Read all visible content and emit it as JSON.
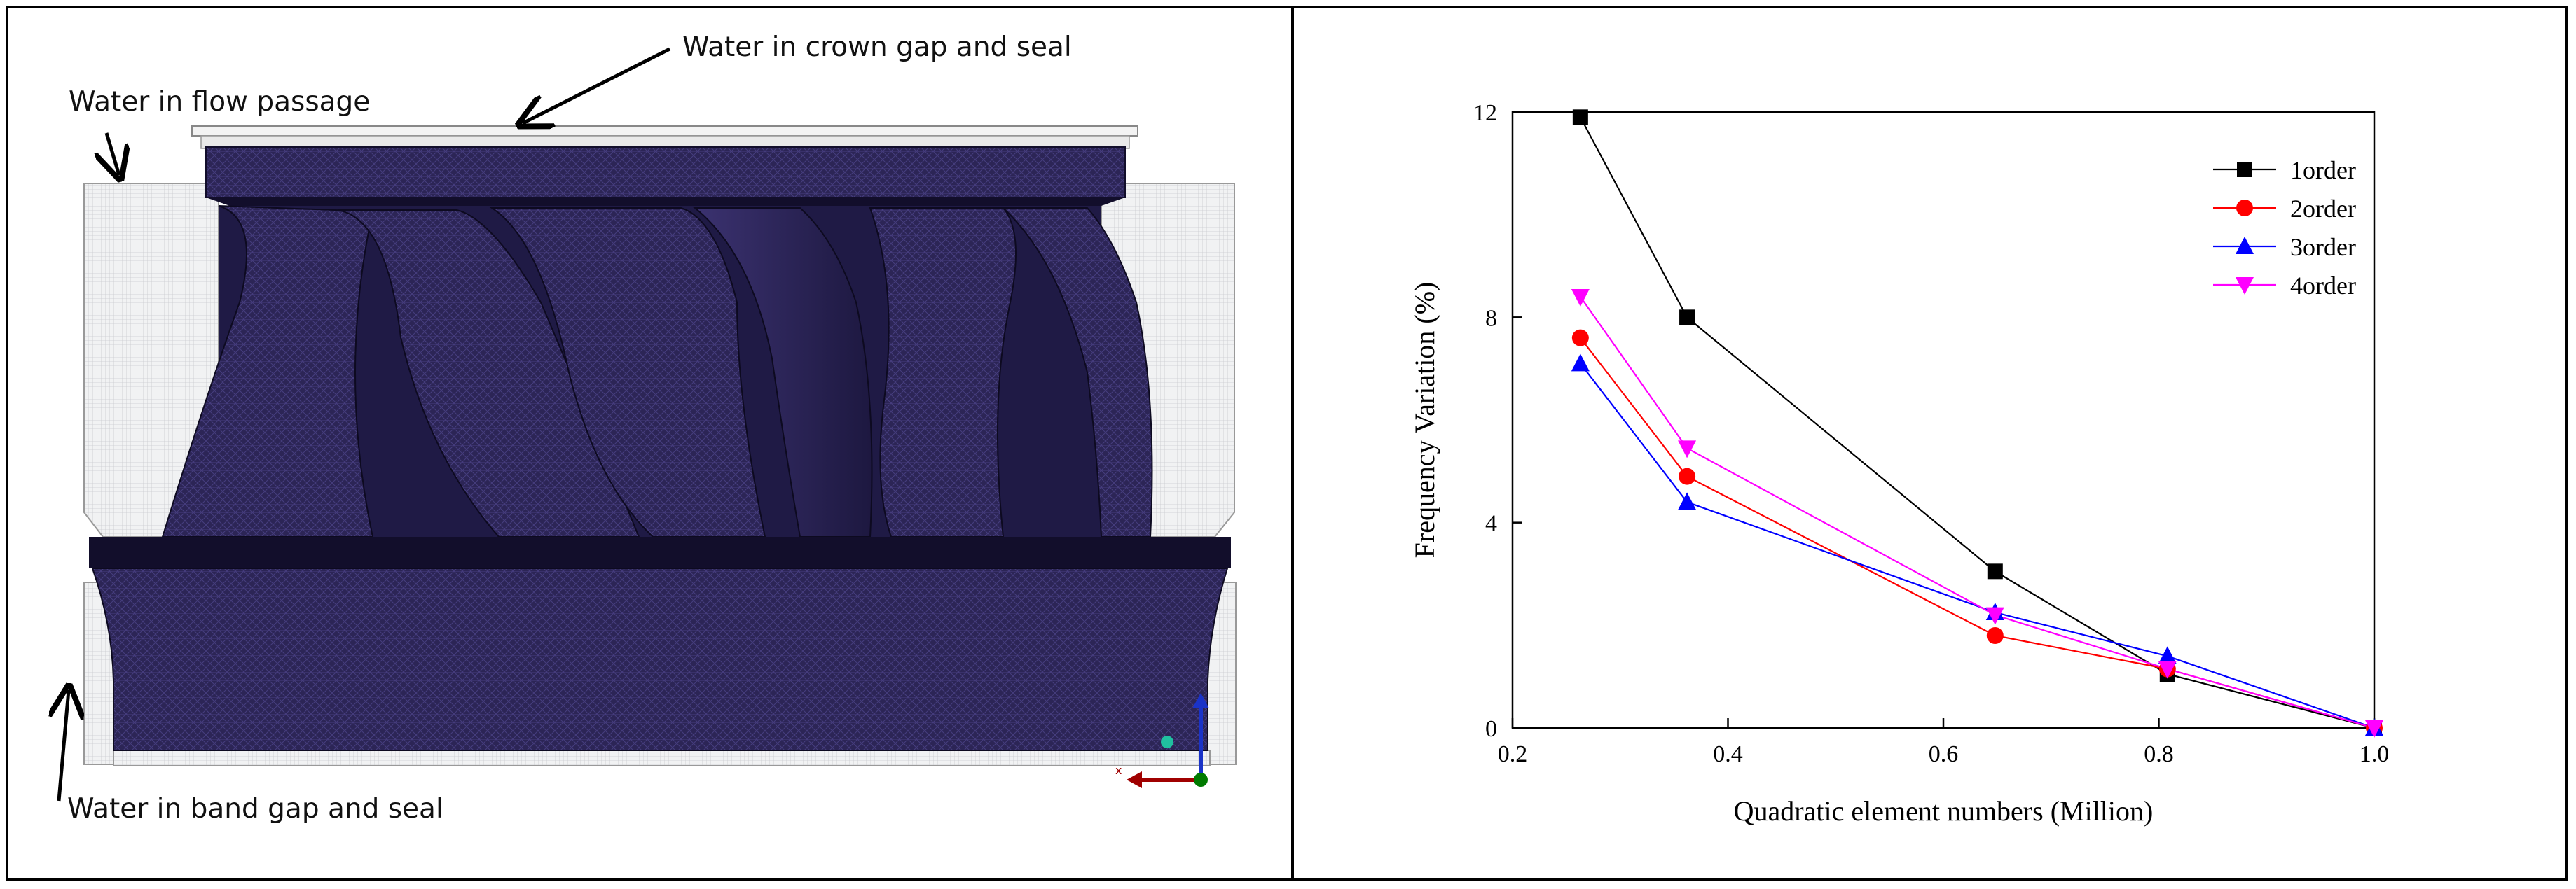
{
  "annotations": {
    "crown": "Water in crown gap and seal",
    "flow": "Water in flow passage",
    "band": "Water in band gap and seal"
  },
  "axis_triad": {
    "x_label": "x",
    "colors": {
      "x": "#a00000",
      "y": "#1a33c8",
      "z": "#007a00",
      "point": "#20c0a0"
    }
  },
  "colors": {
    "mesh": "#2c2556",
    "mesh_dark": "#120e2b",
    "water": "#eceef0"
  },
  "chart_data": {
    "type": "line",
    "title": "",
    "xlabel": "Quadratic element numbers (Million)",
    "ylabel": "Frequency Variation (%)",
    "xlim": [
      0.2,
      1.0
    ],
    "ylim": [
      0,
      12
    ],
    "xticks": [
      0.2,
      0.4,
      0.6,
      0.8,
      1.0
    ],
    "xtick_labels": [
      "0.2",
      "0.4",
      "0.6",
      "0.8",
      "1.0"
    ],
    "yticks": [
      0,
      4,
      8,
      12
    ],
    "ytick_labels": [
      "0",
      "4",
      "8",
      "12"
    ],
    "grid": false,
    "legend_position": "top-right",
    "x": [
      0.263,
      0.362,
      0.648,
      0.808,
      1.0
    ],
    "series": [
      {
        "name": "1order",
        "values": [
          11.9,
          8.0,
          3.05,
          1.05,
          0.0
        ],
        "color": "#000000",
        "marker": "square"
      },
      {
        "name": "2order",
        "values": [
          7.6,
          4.9,
          1.8,
          1.15,
          0.0
        ],
        "color": "#ff0000",
        "marker": "circle"
      },
      {
        "name": "3order",
        "values": [
          7.1,
          4.4,
          2.25,
          1.4,
          0.0
        ],
        "color": "#0000ff",
        "marker": "triangle-up"
      },
      {
        "name": "4order",
        "values": [
          8.4,
          5.45,
          2.2,
          1.15,
          0.0
        ],
        "color": "#ff00ff",
        "marker": "triangle-down"
      }
    ]
  }
}
